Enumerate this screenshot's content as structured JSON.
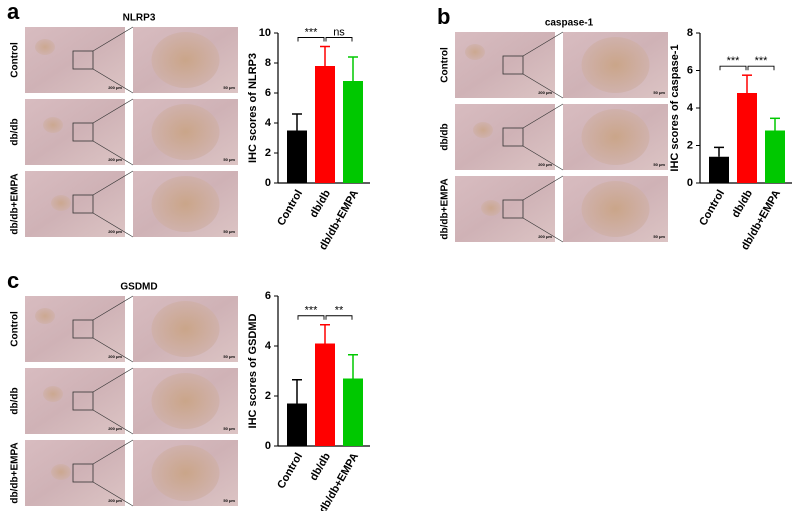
{
  "panels": [
    {
      "label": "a",
      "image_title": "NLRP3",
      "rows": [
        "Control",
        "db/db",
        "db/db+EMPA"
      ],
      "scale_bars": [
        "200 μm",
        "50 μm"
      ]
    },
    {
      "label": "b",
      "image_title": "caspase-1",
      "rows": [
        "Control",
        "db/db",
        "db/db+EMPA"
      ],
      "scale_bars": [
        "200 μm",
        "50 μm"
      ]
    },
    {
      "label": "c",
      "image_title": "GSDMD",
      "rows": [
        "Control",
        "db/db",
        "db/db+EMPA"
      ],
      "scale_bars": [
        "200 μm",
        "50 μm"
      ]
    }
  ],
  "chart_data": [
    {
      "type": "bar",
      "ylabel": "IHC scores of NLRP3",
      "categories": [
        "Control",
        "db/db",
        "db/db+EMPA"
      ],
      "values": [
        3.5,
        7.8,
        6.8
      ],
      "errors": [
        1.1,
        1.3,
        1.6
      ],
      "colors": [
        "#000000",
        "#ff0000",
        "#00c800"
      ],
      "ylim": [
        0,
        10
      ],
      "yticks": [
        0,
        2,
        4,
        6,
        8,
        10
      ],
      "significance": [
        {
          "pair": [
            0,
            1
          ],
          "text": "***"
        },
        {
          "pair": [
            1,
            2
          ],
          "text": "ns"
        }
      ]
    },
    {
      "type": "bar",
      "ylabel": "IHC scores of caspase-1",
      "categories": [
        "Control",
        "db/db",
        "db/db+EMPA"
      ],
      "values": [
        1.4,
        4.8,
        2.8
      ],
      "errors": [
        0.5,
        0.95,
        0.65
      ],
      "colors": [
        "#000000",
        "#ff0000",
        "#00c800"
      ],
      "ylim": [
        0,
        8
      ],
      "yticks": [
        0,
        2,
        4,
        6,
        8
      ],
      "significance": [
        {
          "pair": [
            0,
            1
          ],
          "text": "***"
        },
        {
          "pair": [
            1,
            2
          ],
          "text": "***"
        }
      ]
    },
    {
      "type": "bar",
      "ylabel": "IHC scores of GSDMD",
      "categories": [
        "Control",
        "db/db",
        "db/db+EMPA"
      ],
      "values": [
        1.7,
        4.1,
        2.7
      ],
      "errors": [
        0.95,
        0.75,
        0.95
      ],
      "colors": [
        "#000000",
        "#ff0000",
        "#00c800"
      ],
      "ylim": [
        0,
        6
      ],
      "yticks": [
        0,
        2,
        4,
        6
      ],
      "significance": [
        {
          "pair": [
            0,
            1
          ],
          "text": "***"
        },
        {
          "pair": [
            1,
            2
          ],
          "text": "**"
        }
      ]
    }
  ]
}
